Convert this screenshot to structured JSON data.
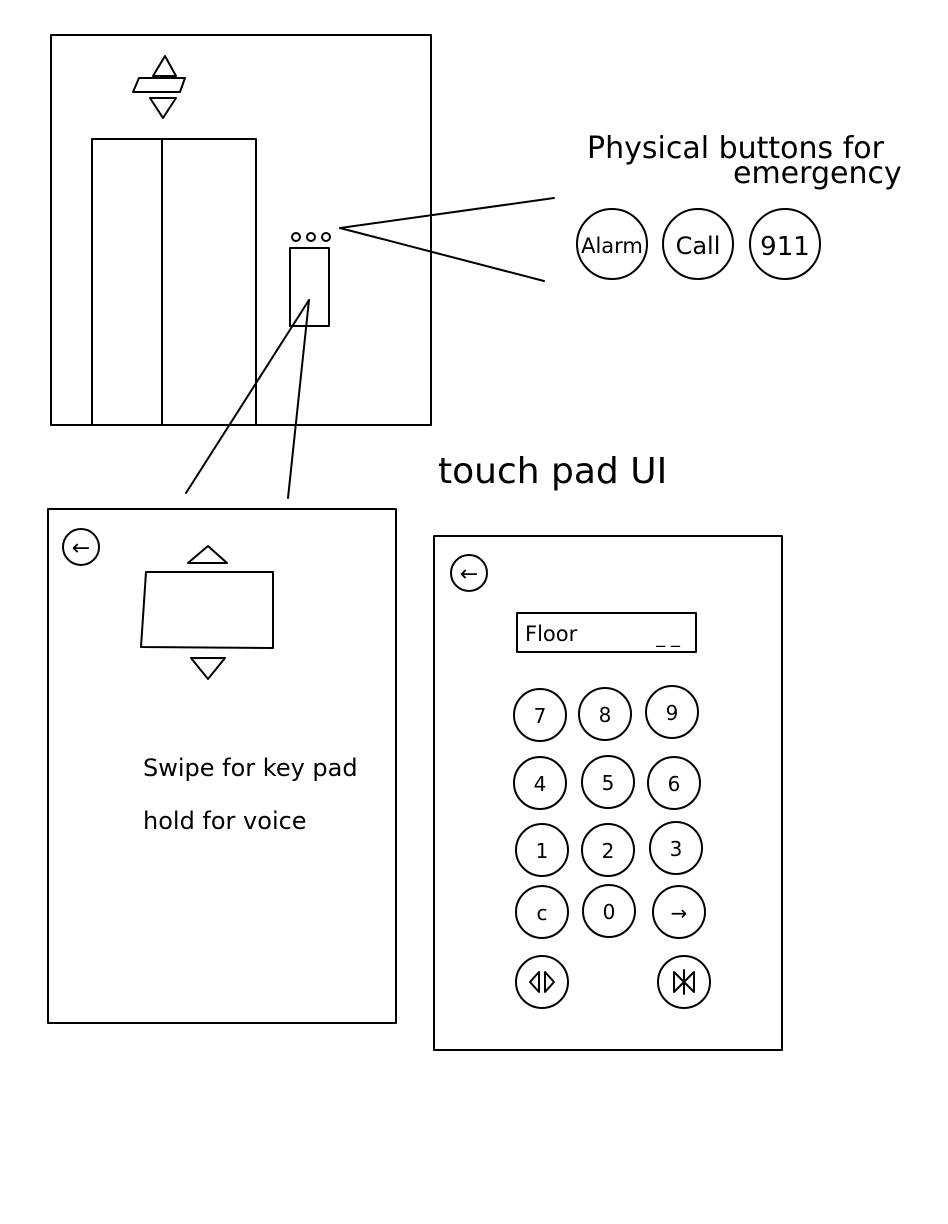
{
  "annotations": {
    "emergency_line1": "Physical buttons for",
    "emergency_line2": "emergency",
    "touchpad_title": "touch pad UI"
  },
  "emergency_buttons": [
    {
      "label": "Alarm"
    },
    {
      "label": "Call"
    },
    {
      "label": "911"
    }
  ],
  "swipe_screen": {
    "back_arrow": "←",
    "instruction_line1": "Swipe for key pad",
    "instruction_line2": "hold for voice"
  },
  "keypad_screen": {
    "back_arrow": "←",
    "floor_label": "Floor",
    "floor_value": "_ _",
    "keys": [
      {
        "label": "7"
      },
      {
        "label": "8"
      },
      {
        "label": "9"
      },
      {
        "label": "4"
      },
      {
        "label": "5"
      },
      {
        "label": "6"
      },
      {
        "label": "1"
      },
      {
        "label": "2"
      },
      {
        "label": "3"
      },
      {
        "label": "c"
      },
      {
        "label": "0"
      },
      {
        "label": "→"
      }
    ],
    "door_open_icon": "door-open-icon",
    "door_close_icon": "door-close-icon"
  }
}
